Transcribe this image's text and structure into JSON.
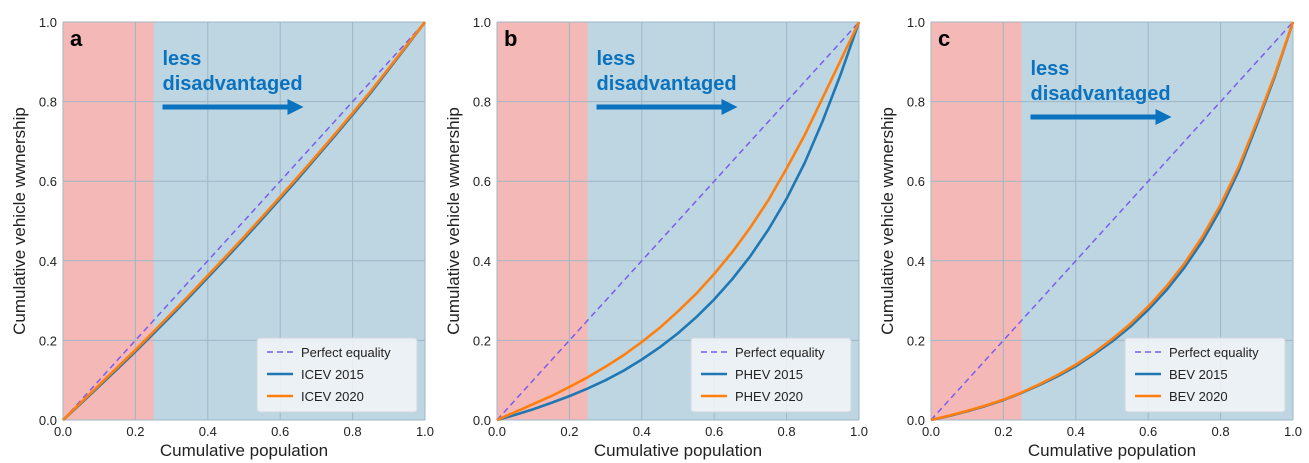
{
  "colors": {
    "disadvantaged_shade": "#f4b9b6",
    "other_shade": "#bdd6e2",
    "grid": "#9fb7c6",
    "equality_line": "#7a5cf0",
    "series_2015": "#1f77b4",
    "series_2020": "#ff7f0e",
    "annotation": "#0a72bf"
  },
  "chart_data": [
    {
      "type": "line",
      "panel": "a",
      "xlabel": "Cumulative population",
      "ylabel": "Cumulative vehicle wwnership",
      "xlim": [
        0,
        1
      ],
      "ylim": [
        0,
        1
      ],
      "xticks": [
        "0.0",
        "0.2",
        "0.4",
        "0.6",
        "0.8",
        "1.0"
      ],
      "yticks": [
        "0.0",
        "0.2",
        "0.4",
        "0.6",
        "0.8",
        "1.0"
      ],
      "grid": true,
      "shaded_region": {
        "x_from": 0,
        "x_to": 0.25
      },
      "annotation": {
        "line1": "less",
        "line2": "disadvantaged"
      },
      "legend_position": "lower-right",
      "x": [
        0,
        0.05,
        0.1,
        0.15,
        0.2,
        0.25,
        0.3,
        0.35,
        0.4,
        0.45,
        0.5,
        0.55,
        0.6,
        0.65,
        0.7,
        0.75,
        0.8,
        0.85,
        0.9,
        0.95,
        1.0
      ],
      "series": [
        {
          "name": "Perfect equality",
          "style": "dashed",
          "values": [
            0,
            0.05,
            0.1,
            0.15,
            0.2,
            0.25,
            0.3,
            0.35,
            0.4,
            0.45,
            0.5,
            0.55,
            0.6,
            0.65,
            0.7,
            0.75,
            0.8,
            0.85,
            0.9,
            0.95,
            1.0
          ]
        },
        {
          "name": "ICEV 2015",
          "values": [
            0,
            0.042,
            0.085,
            0.128,
            0.172,
            0.217,
            0.263,
            0.31,
            0.358,
            0.406,
            0.455,
            0.505,
            0.556,
            0.607,
            0.66,
            0.713,
            0.767,
            0.822,
            0.881,
            0.94,
            1.0
          ]
        },
        {
          "name": "ICEV 2020",
          "values": [
            0,
            0.044,
            0.088,
            0.132,
            0.176,
            0.222,
            0.268,
            0.315,
            0.363,
            0.411,
            0.46,
            0.51,
            0.561,
            0.612,
            0.664,
            0.717,
            0.771,
            0.826,
            0.884,
            0.942,
            1.0
          ]
        }
      ]
    },
    {
      "type": "line",
      "panel": "b",
      "xlabel": "Cumulative population",
      "ylabel": "Cumulative vehicle wwnership",
      "xlim": [
        0,
        1
      ],
      "ylim": [
        0,
        1
      ],
      "xticks": [
        "0.0",
        "0.2",
        "0.4",
        "0.6",
        "0.8",
        "1.0"
      ],
      "yticks": [
        "0.0",
        "0.2",
        "0.4",
        "0.6",
        "0.8",
        "1.0"
      ],
      "grid": true,
      "shaded_region": {
        "x_from": 0,
        "x_to": 0.25
      },
      "annotation": {
        "line1": "less",
        "line2": "disadvantaged"
      },
      "legend_position": "lower-right",
      "x": [
        0,
        0.05,
        0.1,
        0.15,
        0.2,
        0.25,
        0.3,
        0.35,
        0.4,
        0.45,
        0.5,
        0.55,
        0.6,
        0.65,
        0.7,
        0.75,
        0.8,
        0.85,
        0.9,
        0.95,
        1.0
      ],
      "series": [
        {
          "name": "Perfect equality",
          "style": "dashed",
          "values": [
            0,
            0.05,
            0.1,
            0.15,
            0.2,
            0.25,
            0.3,
            0.35,
            0.4,
            0.45,
            0.5,
            0.55,
            0.6,
            0.65,
            0.7,
            0.75,
            0.8,
            0.85,
            0.9,
            0.95,
            1.0
          ]
        },
        {
          "name": "PHEV 2015",
          "values": [
            0,
            0.013,
            0.027,
            0.043,
            0.06,
            0.079,
            0.1,
            0.124,
            0.152,
            0.183,
            0.218,
            0.258,
            0.303,
            0.354,
            0.412,
            0.479,
            0.556,
            0.646,
            0.752,
            0.87,
            1.0
          ]
        },
        {
          "name": "PHEV 2020",
          "values": [
            0,
            0.02,
            0.04,
            0.06,
            0.083,
            0.107,
            0.134,
            0.163,
            0.196,
            0.232,
            0.273,
            0.317,
            0.367,
            0.422,
            0.484,
            0.553,
            0.632,
            0.716,
            0.81,
            0.905,
            1.0
          ]
        }
      ]
    },
    {
      "type": "line",
      "panel": "c",
      "xlabel": "Cumulative population",
      "ylabel": "Cumulative vehicle wwnership",
      "xlim": [
        0,
        1
      ],
      "ylim": [
        0,
        1
      ],
      "xticks": [
        "0.0",
        "0.2",
        "0.4",
        "0.6",
        "0.8",
        "1.0"
      ],
      "yticks": [
        "0.0",
        "0.2",
        "0.4",
        "0.6",
        "0.8",
        "1.0"
      ],
      "grid": true,
      "shaded_region": {
        "x_from": 0,
        "x_to": 0.25
      },
      "annotation": {
        "line1": "less",
        "line2": "disadvantaged"
      },
      "legend_position": "lower-right",
      "x": [
        0,
        0.05,
        0.1,
        0.15,
        0.2,
        0.25,
        0.3,
        0.35,
        0.4,
        0.45,
        0.5,
        0.55,
        0.6,
        0.65,
        0.7,
        0.75,
        0.8,
        0.85,
        0.9,
        0.95,
        1.0
      ],
      "series": [
        {
          "name": "Perfect equality",
          "style": "dashed",
          "values": [
            0,
            0.05,
            0.1,
            0.15,
            0.2,
            0.25,
            0.3,
            0.35,
            0.4,
            0.45,
            0.5,
            0.55,
            0.6,
            0.65,
            0.7,
            0.75,
            0.8,
            0.85,
            0.9,
            0.95,
            1.0
          ]
        },
        {
          "name": "BEV 2015",
          "values": [
            0,
            0.01,
            0.022,
            0.035,
            0.05,
            0.068,
            0.088,
            0.11,
            0.135,
            0.165,
            0.197,
            0.234,
            0.277,
            0.326,
            0.383,
            0.45,
            0.53,
            0.626,
            0.742,
            0.864,
            1.0
          ]
        },
        {
          "name": "BEV 2020",
          "values": [
            0,
            0.011,
            0.023,
            0.036,
            0.051,
            0.069,
            0.09,
            0.113,
            0.139,
            0.169,
            0.203,
            0.241,
            0.285,
            0.335,
            0.393,
            0.461,
            0.541,
            0.636,
            0.749,
            0.868,
            1.0
          ]
        }
      ]
    }
  ]
}
